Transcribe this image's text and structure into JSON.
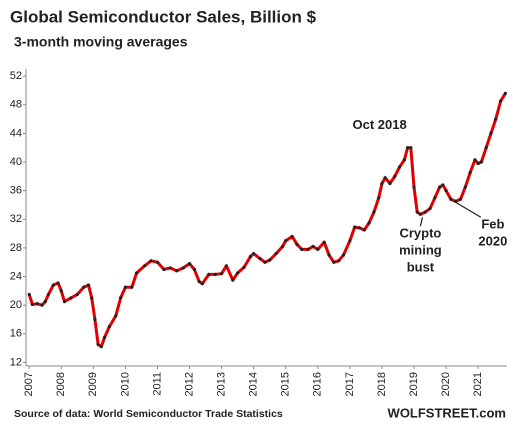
{
  "chart_data": {
    "type": "line",
    "title": "Global Semiconductor Sales, Billion $",
    "subtitle": "3-month moving averages",
    "source": "Source of data: World Semiconductor Trade Statistics",
    "brand": "WOLFSTREET.com",
    "annotations": [
      {
        "lines": [
          "Oct 2018"
        ],
        "x": 2018.8,
        "y": 42.0
      },
      {
        "lines": [
          "Crypto",
          "mining",
          "bust"
        ],
        "x": 2019.2,
        "y": 32.7
      },
      {
        "lines": [
          "Feb",
          "2020"
        ],
        "x": 2020.15,
        "y": 34.8
      }
    ],
    "x": [
      2007.0,
      2007.1,
      2007.25,
      2007.4,
      2007.5,
      2007.6,
      2007.75,
      2007.9,
      2008.0,
      2008.1,
      2008.3,
      2008.5,
      2008.7,
      2008.85,
      2008.95,
      2009.05,
      2009.15,
      2009.25,
      2009.35,
      2009.5,
      2009.7,
      2009.85,
      2010.0,
      2010.2,
      2010.35,
      2010.6,
      2010.8,
      2011.0,
      2011.2,
      2011.4,
      2011.6,
      2011.8,
      2012.0,
      2012.15,
      2012.3,
      2012.4,
      2012.6,
      2012.8,
      2013.0,
      2013.15,
      2013.35,
      2013.5,
      2013.7,
      2013.9,
      2014.0,
      2014.2,
      2014.35,
      2014.5,
      2014.7,
      2014.9,
      2015.0,
      2015.2,
      2015.35,
      2015.5,
      2015.7,
      2015.85,
      2016.0,
      2016.2,
      2016.35,
      2016.5,
      2016.65,
      2016.8,
      2017.0,
      2017.15,
      2017.3,
      2017.45,
      2017.6,
      2017.75,
      2017.9,
      2018.0,
      2018.1,
      2018.25,
      2018.4,
      2018.55,
      2018.7,
      2018.8,
      2018.9,
      2019.0,
      2019.1,
      2019.2,
      2019.35,
      2019.5,
      2019.65,
      2019.8,
      2019.9,
      2020.0,
      2020.15,
      2020.3,
      2020.45,
      2020.6,
      2020.75,
      2020.9,
      2021.0,
      2021.1,
      2021.25,
      2021.4,
      2021.55,
      2021.7,
      2021.85
    ],
    "series": [
      {
        "name": "Sales",
        "color": "#e00000",
        "marker_color": "#222222",
        "values": [
          21.5,
          20.1,
          20.2,
          20.0,
          20.5,
          21.5,
          22.8,
          23.1,
          22.0,
          20.5,
          21.0,
          21.5,
          22.5,
          22.8,
          21.0,
          18.0,
          14.5,
          14.2,
          15.5,
          17.0,
          18.5,
          21.0,
          22.5,
          22.5,
          24.5,
          25.5,
          26.2,
          26.0,
          25.0,
          25.2,
          24.8,
          25.2,
          25.8,
          25.0,
          23.3,
          23.0,
          24.3,
          24.3,
          24.4,
          25.5,
          23.5,
          24.5,
          25.3,
          26.8,
          27.2,
          26.5,
          26.0,
          26.3,
          27.2,
          28.2,
          29.0,
          29.6,
          28.5,
          27.8,
          27.8,
          28.2,
          27.8,
          28.8,
          27.0,
          26.0,
          26.2,
          27.0,
          29.0,
          30.9,
          30.8,
          30.5,
          31.5,
          33.0,
          35.0,
          37.0,
          37.8,
          37.0,
          38.0,
          39.3,
          40.3,
          42.0,
          42.0,
          36.5,
          33.0,
          32.7,
          33.0,
          33.5,
          35.0,
          36.5,
          36.8,
          36.0,
          34.8,
          34.5,
          34.8,
          36.5,
          38.5,
          40.3,
          39.8,
          40.0,
          42.0,
          44.0,
          46.0,
          48.5,
          49.6
        ]
      }
    ],
    "xlim": [
      2006.9,
      2021.9
    ],
    "xticks": [
      2007,
      2008,
      2009,
      2010,
      2011,
      2012,
      2013,
      2014,
      2015,
      2016,
      2017,
      2018,
      2019,
      2020,
      2021
    ],
    "ylim": [
      11.5,
      53
    ],
    "yticks": [
      12,
      16,
      20,
      24,
      28,
      32,
      36,
      40,
      44,
      48,
      52
    ],
    "grid": false
  }
}
